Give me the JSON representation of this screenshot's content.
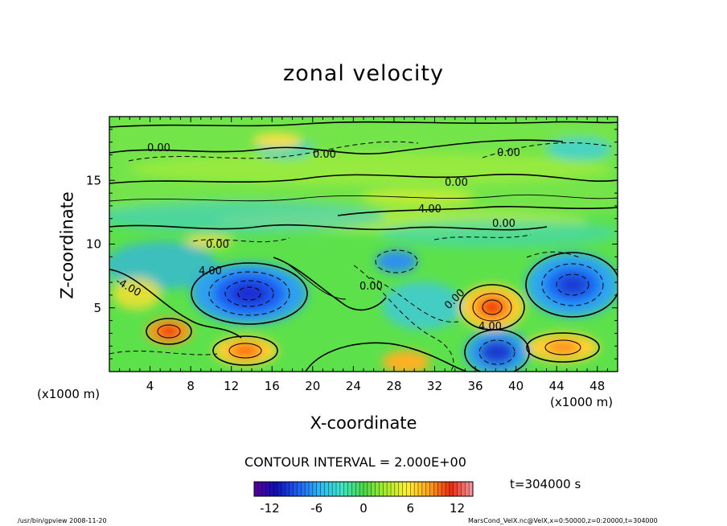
{
  "chart_data": {
    "type": "heatmap",
    "title": "zonal velocity",
    "xlabel": "X-coordinate",
    "ylabel": "Z-coordinate",
    "x_unit": "(x1000 m)",
    "xlim": [
      0,
      50
    ],
    "ylim": [
      0,
      20
    ],
    "x_ticks": [
      4,
      8,
      12,
      16,
      20,
      24,
      28,
      32,
      36,
      40,
      44,
      48
    ],
    "y_ticks": [
      5,
      10,
      15
    ],
    "colorbar": {
      "range": [
        -14,
        14
      ],
      "ticks": [
        -12,
        -6,
        0,
        6,
        12
      ],
      "colors": [
        "#5b0099",
        "#0d0fb8",
        "#1f5ff5",
        "#2fb7f2",
        "#3de6c6",
        "#4ad84a",
        "#a8ec2a",
        "#fff033",
        "#ffa21a",
        "#ee2a10",
        "#f49aa6"
      ]
    },
    "contour_interval": "CONTOUR INTERVAL = 2.000E+00",
    "contour_labels": [
      "0.00",
      "0.00",
      "0.00",
      "0.00",
      "4.00",
      "0.00",
      "0.00",
      "4.00",
      "0.00",
      "-4.00",
      "0.00",
      "4.00"
    ],
    "features": [
      {
        "name": "negative core",
        "x": 13.8,
        "z": 6.2,
        "value": -10
      },
      {
        "name": "negative core",
        "x": 45.5,
        "z": 7.0,
        "value": -10
      },
      {
        "name": "negative core",
        "x": 38.6,
        "z": 1.3,
        "value": -10
      },
      {
        "name": "negative core",
        "x": 28,
        "z": 8.7,
        "value": -6
      },
      {
        "name": "positive core",
        "x": 37.2,
        "z": 5.3,
        "value": 12
      },
      {
        "name": "positive core",
        "x": 6.4,
        "z": 3.0,
        "value": 12
      },
      {
        "name": "positive core",
        "x": 14,
        "z": 1.6,
        "value": 10
      },
      {
        "name": "positive core",
        "x": 45,
        "z": 1.8,
        "value": 8
      },
      {
        "name": "positive core",
        "x": 29,
        "z": 1.0,
        "value": 6
      },
      {
        "name": "positive core",
        "x": 17,
        "z": 18.3,
        "value": 4
      }
    ]
  },
  "time_label": "t=304000 s",
  "footer": {
    "left": "/usr/bin/gpview  2008-11-20",
    "right": "MarsCond_VelX.nc@VelX,x=0:50000,z=0:20000,t=304000"
  },
  "colors": {
    "background_field": "#5ce14b",
    "axis": "#000000"
  }
}
